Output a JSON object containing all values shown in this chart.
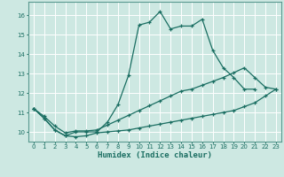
{
  "xlabel": "Humidex (Indice chaleur)",
  "bg_color": "#cde8e2",
  "grid_color": "#b8d8d0",
  "line_color": "#1a6e62",
  "xlim": [
    -0.5,
    23.5
  ],
  "ylim": [
    9.5,
    16.7
  ],
  "yticks": [
    10,
    11,
    12,
    13,
    14,
    15,
    16
  ],
  "xticks": [
    0,
    1,
    2,
    3,
    4,
    5,
    6,
    7,
    8,
    9,
    10,
    11,
    12,
    13,
    14,
    15,
    16,
    17,
    18,
    19,
    20,
    21,
    22,
    23
  ],
  "curve1_x": [
    0,
    1,
    2,
    3,
    4,
    5,
    6,
    7,
    8,
    9,
    10,
    11,
    12,
    13,
    14,
    15,
    16,
    17,
    18,
    19,
    20,
    21
  ],
  "curve1_y": [
    11.2,
    10.7,
    10.1,
    9.8,
    10.0,
    10.0,
    10.0,
    10.5,
    11.4,
    12.9,
    15.5,
    15.65,
    16.2,
    15.3,
    15.45,
    15.45,
    15.8,
    14.2,
    13.3,
    12.8,
    12.2,
    12.2
  ],
  "curve2_x": [
    0,
    1,
    2,
    3,
    4,
    5,
    6,
    7,
    8,
    9,
    10,
    11,
    12,
    13,
    14,
    15,
    16,
    17,
    18,
    19,
    20,
    21,
    22,
    23
  ],
  "curve2_y": [
    11.2,
    10.8,
    10.3,
    9.95,
    10.05,
    10.05,
    10.1,
    10.35,
    10.6,
    10.85,
    11.1,
    11.35,
    11.6,
    11.85,
    12.1,
    12.2,
    12.4,
    12.6,
    12.8,
    13.05,
    13.3,
    12.8,
    12.3,
    12.2
  ],
  "curve3_x": [
    0,
    1,
    2,
    3,
    4,
    5,
    6,
    7,
    8,
    9,
    10,
    11,
    12,
    13,
    14,
    15,
    16,
    17,
    18,
    19,
    20,
    21,
    22,
    23
  ],
  "curve3_y": [
    11.2,
    10.7,
    10.1,
    9.8,
    9.75,
    9.8,
    9.95,
    10.0,
    10.05,
    10.1,
    10.2,
    10.3,
    10.4,
    10.5,
    10.6,
    10.7,
    10.8,
    10.9,
    11.0,
    11.1,
    11.3,
    11.5,
    11.85,
    12.2
  ]
}
